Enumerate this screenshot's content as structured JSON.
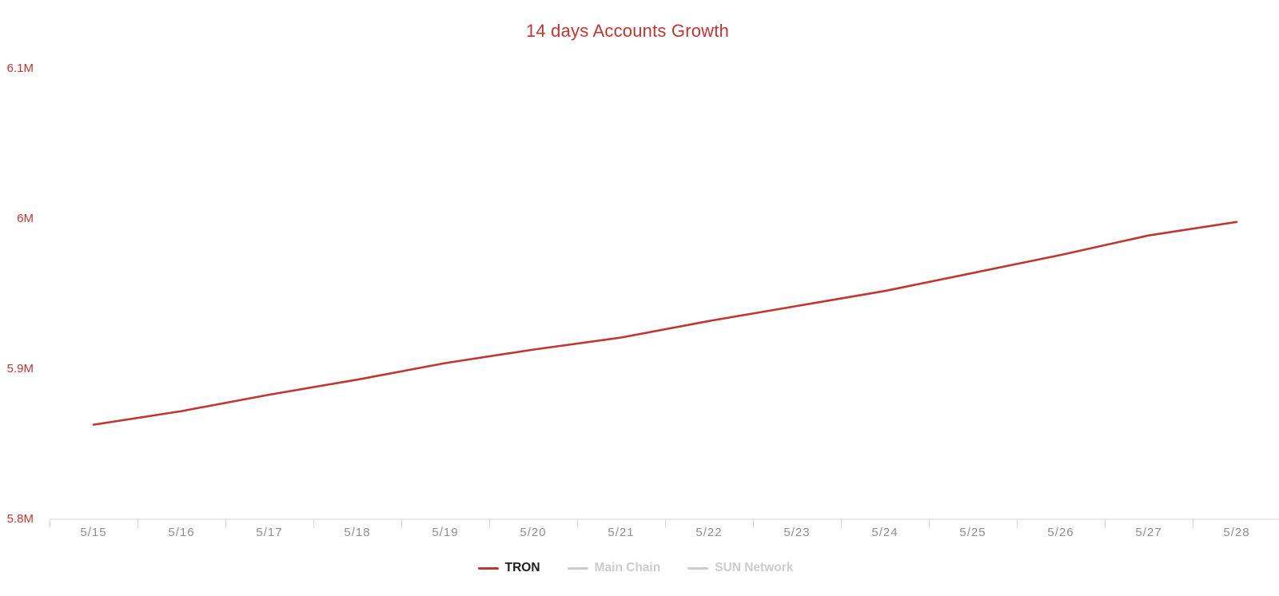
{
  "chart_data": {
    "type": "line",
    "title": "14 days Accounts Growth",
    "title_color": "#c23631",
    "categories": [
      "5/15",
      "5/16",
      "5/17",
      "5/18",
      "5/19",
      "5/20",
      "5/21",
      "5/22",
      "5/23",
      "5/24",
      "5/25",
      "5/26",
      "5/27",
      "5/28"
    ],
    "series": [
      {
        "name": "TRON",
        "color": "#c23631",
        "enabled": true,
        "unit": "M accounts",
        "values": [
          5.863,
          5.872,
          5.883,
          5.893,
          5.904,
          5.913,
          5.921,
          5.932,
          5.942,
          5.952,
          5.964,
          5.976,
          5.989,
          5.998
        ]
      },
      {
        "name": "Main Chain",
        "color": "#cccccc",
        "enabled": false,
        "values": []
      },
      {
        "name": "SUN Network",
        "color": "#cccccc",
        "enabled": false,
        "values": []
      }
    ],
    "yticks": [
      {
        "label": "6.1M",
        "value": 6.1
      },
      {
        "label": "6M",
        "value": 6.0
      },
      {
        "label": "5.9M",
        "value": 5.9
      },
      {
        "label": "5.8M",
        "value": 5.8
      }
    ],
    "ylim": [
      5.8,
      6.1
    ],
    "grid": false,
    "legend_position": "bottom",
    "axis_line_color": "#ccd6eb",
    "xlabel_color": "#8f8f8f",
    "ylabel_color": "#c23631"
  },
  "legend": {
    "items": [
      {
        "label": "TRON",
        "marker_color": "#c23631",
        "text_color": "#1f1f1f",
        "enabled": true
      },
      {
        "label": "Main Chain",
        "marker_color": "#cccccc",
        "text_color": "#cccccc",
        "enabled": false
      },
      {
        "label": "SUN Network",
        "marker_color": "#cccccc",
        "text_color": "#cccccc",
        "enabled": false
      }
    ]
  }
}
